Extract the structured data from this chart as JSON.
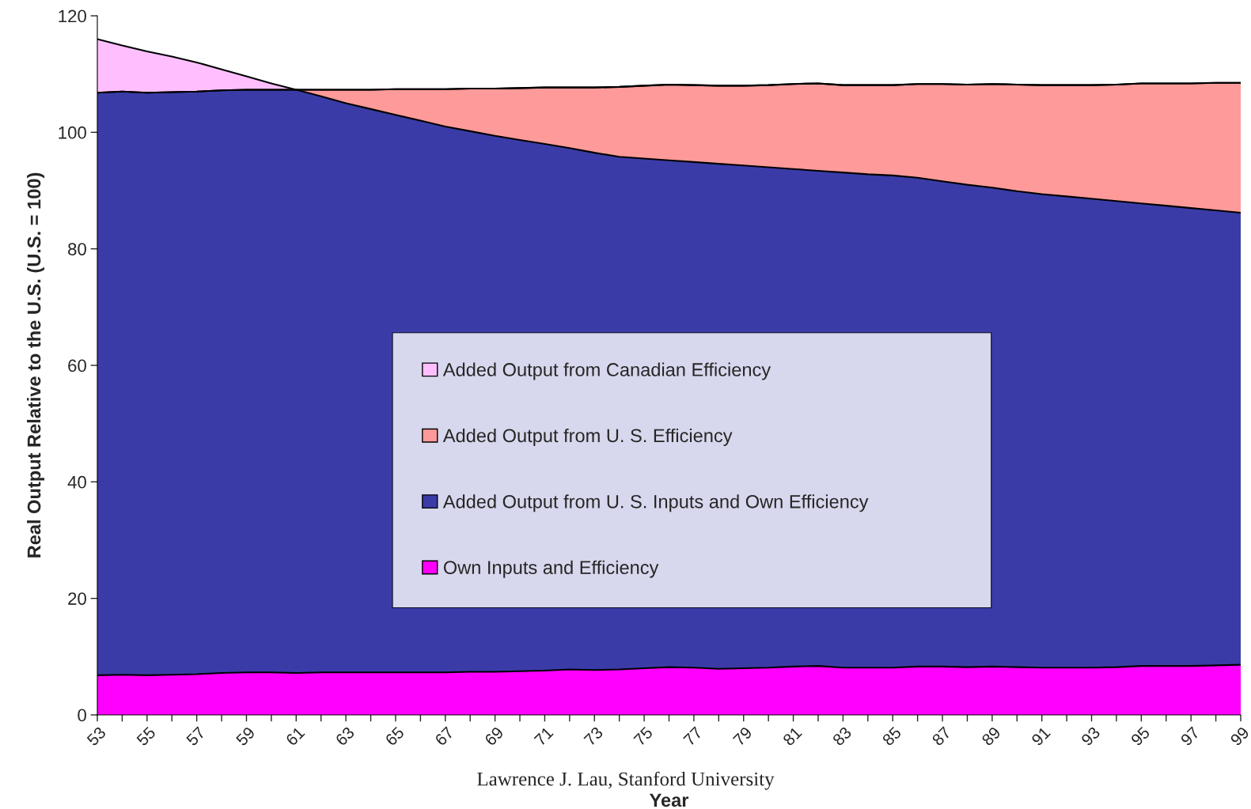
{
  "chart_data": {
    "type": "area",
    "stacked": true,
    "xlabel": "Year",
    "ylabel": "Real Output Relative to the U.S. (U.S. = 100)",
    "categories": [
      "53",
      null,
      "55",
      null,
      "57",
      null,
      "59",
      null,
      "61",
      null,
      "63",
      null,
      "65",
      null,
      "67",
      null,
      "69",
      null,
      "71",
      null,
      "73",
      null,
      "75",
      null,
      "77",
      null,
      "79",
      null,
      "81",
      null,
      "83",
      null,
      "85",
      null,
      "87",
      null,
      "89",
      null,
      "91",
      null,
      "93",
      null,
      "95",
      null,
      "97",
      null,
      "99"
    ],
    "series": [
      {
        "name": "Own Inputs and Efficiency",
        "color": "#ff00ff",
        "values": [
          6.8,
          6.9,
          6.8,
          6.9,
          7.0,
          7.2,
          7.3,
          7.3,
          7.2,
          7.3,
          7.3,
          7.3,
          7.3,
          7.3,
          7.3,
          7.4,
          7.4,
          7.5,
          7.6,
          7.8,
          7.7,
          7.8,
          8.0,
          8.2,
          8.1,
          7.9,
          8.0,
          8.1,
          8.3,
          8.4,
          8.1,
          8.1,
          8.1,
          8.3,
          8.3,
          8.2,
          8.3,
          8.2,
          8.1,
          8.1,
          8.1,
          8.2,
          8.4,
          8.4,
          8.4,
          8.5,
          8.6
        ]
      },
      {
        "name": "Added Output from U. S. Inputs and Own Efficiency",
        "color": "#3b3ba8",
        "values": [
          100.0,
          100.1,
          100.0,
          100.0,
          100.0,
          100.0,
          100.0,
          100.0,
          100.1,
          98.9,
          97.7,
          96.7,
          95.7,
          94.7,
          93.7,
          92.8,
          92.0,
          91.2,
          90.4,
          89.5,
          88.8,
          88.0,
          87.5,
          87.0,
          86.8,
          86.7,
          86.3,
          85.9,
          85.4,
          85.0,
          85.0,
          84.7,
          84.5,
          83.9,
          83.3,
          82.8,
          82.2,
          81.7,
          81.3,
          80.9,
          80.5,
          80.0,
          79.4,
          79.0,
          78.6,
          78.1,
          77.6
        ]
      },
      {
        "name": "Added Output from U. S. Efficiency",
        "color": "#ff9a9a",
        "values": [
          0,
          0,
          0,
          0,
          0,
          0,
          0,
          0,
          0,
          1.1,
          2.3,
          3.3,
          4.4,
          5.4,
          6.4,
          7.3,
          8.1,
          8.9,
          9.7,
          10.4,
          11.2,
          12.0,
          12.5,
          13.0,
          13.2,
          13.4,
          13.7,
          14.1,
          14.6,
          15.0,
          15.0,
          15.3,
          15.5,
          16.1,
          16.7,
          17.2,
          17.8,
          18.3,
          18.7,
          19.1,
          19.5,
          20.0,
          20.6,
          21.0,
          21.4,
          21.9,
          22.3
        ]
      },
      {
        "name": "Added Output from Canadian Efficiency",
        "color": "#ffbfff",
        "values": [
          9.2,
          7.9,
          7.1,
          6.1,
          5.0,
          3.6,
          2.3,
          1.1,
          0,
          0,
          0,
          0,
          0,
          0,
          0,
          0,
          0,
          0,
          0,
          0,
          0,
          0,
          0,
          0,
          0,
          0,
          0,
          0,
          0,
          0,
          0,
          0,
          0,
          0,
          0,
          0,
          0,
          0,
          0,
          0,
          0,
          0,
          0,
          0,
          0,
          0,
          0
        ]
      }
    ],
    "ylim": [
      0,
      120
    ],
    "yticks": [
      0,
      20,
      40,
      60,
      80,
      100,
      120
    ],
    "grid": false,
    "legend": "center",
    "annotations": [
      "Lawrence J. Lau, Stanford University"
    ]
  }
}
